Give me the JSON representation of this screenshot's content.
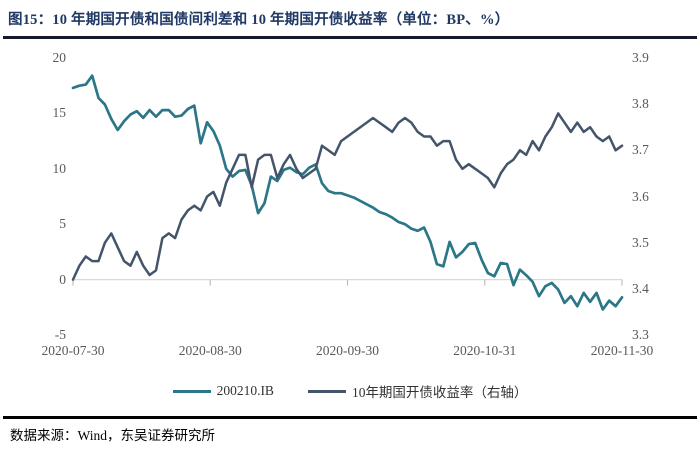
{
  "page": {
    "title": "图15：10 年期国开债和国债间利差和 10 年期国开债收益率（单位：BP、%）",
    "source_note": "数据来源：Wind，东吴证券研究所"
  },
  "colors": {
    "teal": "#2B7687",
    "slate": "#44546A",
    "title_navy": "#1F3864",
    "axis_text": "#595959",
    "axis_line": "#D9D9D9",
    "tick_line": "#BFBFBF",
    "rule_dark": "#14192B",
    "footer_rule": "#000000"
  },
  "chart_data": {
    "type": "line",
    "title": "图15：10 年期国开债和国债间利差和 10 年期国开债收益率（单位：BP、%）",
    "units": [
      "BP",
      "%"
    ],
    "grid": "zero-line-only",
    "legend_position": "bottom",
    "x_tick_labels": [
      "2020-07-30",
      "2020-08-30",
      "2020-09-30",
      "2020-10-31",
      "2020-11-30"
    ],
    "left_axis": {
      "unit": "BP",
      "min": -5,
      "max": 20,
      "ticks": [
        20,
        15,
        10,
        5,
        0,
        -5
      ]
    },
    "right_axis": {
      "unit": "%",
      "min": 3.3,
      "max": 3.9,
      "ticks": [
        3.9,
        3.8,
        3.7,
        3.6,
        3.5,
        3.4,
        3.3
      ]
    },
    "series": [
      {
        "name": "200210.IB",
        "axis": "left",
        "color": "#2B7687",
        "values": [
          17.3,
          17.5,
          17.6,
          18.4,
          16.4,
          15.8,
          14.5,
          13.5,
          14.3,
          14.9,
          15.2,
          14.6,
          15.3,
          14.7,
          15.3,
          15.3,
          14.7,
          14.8,
          15.4,
          15.7,
          12.3,
          14.2,
          13.4,
          12.1,
          10.0,
          9.3,
          9.8,
          9.9,
          8.5,
          6.0,
          6.9,
          9.3,
          8.9,
          9.9,
          10.1,
          9.7,
          9.5,
          10.1,
          10.4,
          8.7,
          8.0,
          7.8,
          7.8,
          7.6,
          7.4,
          7.1,
          6.8,
          6.5,
          6.1,
          5.9,
          5.6,
          5.2,
          5.0,
          4.6,
          4.4,
          4.7,
          3.4,
          1.4,
          1.2,
          3.4,
          2.0,
          2.5,
          3.2,
          3.3,
          1.8,
          0.6,
          0.3,
          1.5,
          1.4,
          -0.5,
          0.9,
          0.4,
          -0.2,
          -1.5,
          -0.6,
          -0.3,
          -0.9,
          -2.1,
          -1.5,
          -2.4,
          -1.2,
          -2.0,
          -1.2,
          -2.7,
          -1.9,
          -2.4,
          -1.6
        ]
      },
      {
        "name": "10年期国开债收益率（右轴）",
        "axis": "right",
        "color": "#44546A",
        "values": [
          3.42,
          3.45,
          3.47,
          3.46,
          3.46,
          3.5,
          3.52,
          3.49,
          3.46,
          3.45,
          3.48,
          3.45,
          3.43,
          3.44,
          3.51,
          3.52,
          3.51,
          3.55,
          3.57,
          3.58,
          3.57,
          3.6,
          3.61,
          3.58,
          3.63,
          3.66,
          3.69,
          3.69,
          3.62,
          3.68,
          3.69,
          3.69,
          3.64,
          3.67,
          3.69,
          3.66,
          3.64,
          3.65,
          3.66,
          3.71,
          3.7,
          3.69,
          3.72,
          3.73,
          3.74,
          3.75,
          3.76,
          3.77,
          3.76,
          3.75,
          3.74,
          3.76,
          3.77,
          3.76,
          3.74,
          3.73,
          3.73,
          3.71,
          3.72,
          3.72,
          3.68,
          3.66,
          3.67,
          3.66,
          3.65,
          3.64,
          3.62,
          3.65,
          3.67,
          3.68,
          3.7,
          3.69,
          3.72,
          3.7,
          3.73,
          3.75,
          3.78,
          3.76,
          3.74,
          3.76,
          3.74,
          3.75,
          3.73,
          3.72,
          3.73,
          3.7,
          3.71
        ]
      }
    ]
  }
}
